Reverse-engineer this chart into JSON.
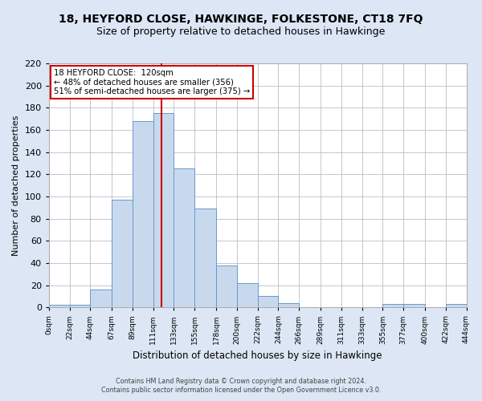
{
  "title": "18, HEYFORD CLOSE, HAWKINGE, FOLKESTONE, CT18 7FQ",
  "subtitle": "Size of property relative to detached houses in Hawkinge",
  "xlabel": "Distribution of detached houses by size in Hawkinge",
  "ylabel": "Number of detached properties",
  "bin_edges": [
    0,
    22,
    44,
    67,
    89,
    111,
    133,
    155,
    178,
    200,
    222,
    244,
    266,
    289,
    311,
    333,
    355,
    377,
    400,
    422,
    444
  ],
  "bin_labels": [
    "0sqm",
    "22sqm",
    "44sqm",
    "67sqm",
    "89sqm",
    "111sqm",
    "133sqm",
    "155sqm",
    "178sqm",
    "200sqm",
    "222sqm",
    "244sqm",
    "266sqm",
    "289sqm",
    "311sqm",
    "333sqm",
    "355sqm",
    "377sqm",
    "400sqm",
    "422sqm",
    "444sqm"
  ],
  "counts": [
    2,
    2,
    16,
    97,
    168,
    175,
    125,
    89,
    38,
    22,
    10,
    4,
    0,
    0,
    0,
    0,
    3,
    3,
    0,
    3
  ],
  "bar_facecolor": "#c9d9ed",
  "bar_edgecolor": "#6699cc",
  "property_line_x": 120,
  "property_line_color": "#cc0000",
  "annotation_line1": "18 HEYFORD CLOSE:  120sqm",
  "annotation_line2": "← 48% of detached houses are smaller (356)",
  "annotation_line3": "51% of semi-detached houses are larger (375) →",
  "annotation_box_edgecolor": "#cc0000",
  "annotation_box_facecolor": "#ffffff",
  "ylim": [
    0,
    220
  ],
  "yticks": [
    0,
    20,
    40,
    60,
    80,
    100,
    120,
    140,
    160,
    180,
    200,
    220
  ],
  "footer1": "Contains HM Land Registry data © Crown copyright and database right 2024.",
  "footer2": "Contains public sector information licensed under the Open Government Licence v3.0.",
  "title_fontsize": 10,
  "subtitle_fontsize": 9,
  "figure_background_color": "#dce6f5",
  "plot_background_color": "#ffffff",
  "grid_color": "#bbbbcc"
}
